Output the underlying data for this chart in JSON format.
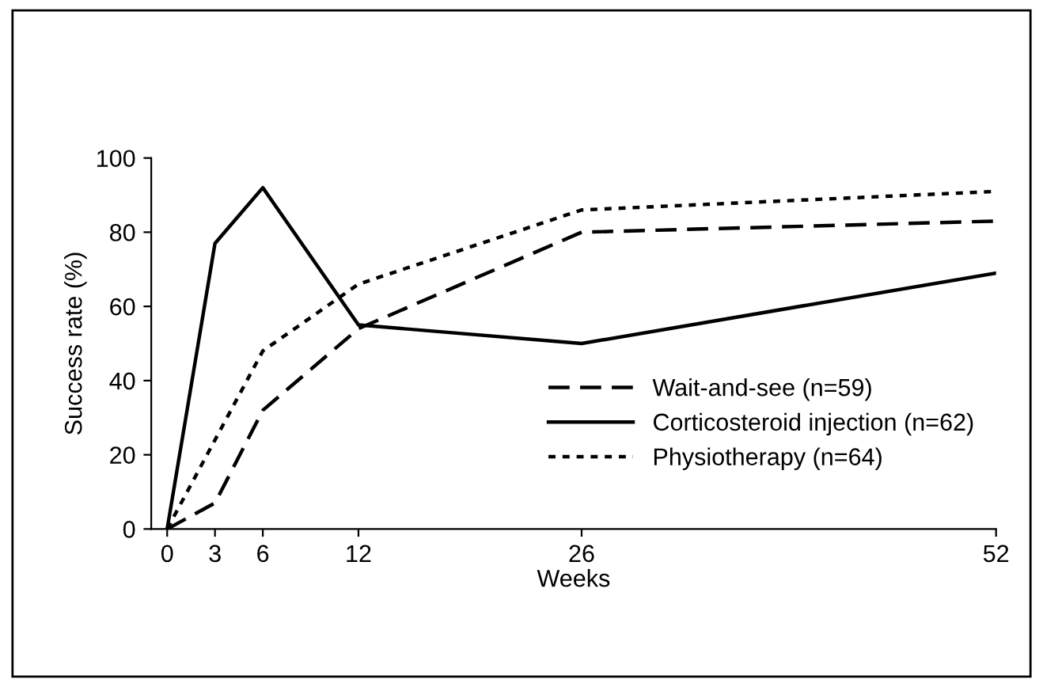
{
  "chart_data": {
    "type": "line",
    "xlabel": "Weeks",
    "ylabel": "Success rate (%)",
    "x": [
      0,
      3,
      6,
      12,
      26,
      52
    ],
    "series": [
      {
        "name": "Wait-and-see (n=59)",
        "color": "#000000",
        "line_style": "dashed",
        "values": [
          0,
          7,
          32,
          54,
          80,
          83
        ]
      },
      {
        "name": "Corticosteroid injection (n=62)",
        "color": "#000000",
        "line_style": "solid",
        "values": [
          0,
          77,
          92,
          55,
          50,
          69
        ]
      },
      {
        "name": "Physiotherapy (n=64)",
        "color": "#000000",
        "line_style": "dotted",
        "values": [
          0,
          24,
          48,
          66,
          86,
          91
        ]
      }
    ],
    "xlim": [
      -1,
      52
    ],
    "xticks": [
      0,
      3,
      6,
      12,
      26,
      52
    ],
    "ylim": [
      0,
      100
    ],
    "yticks": [
      0,
      20,
      40,
      60,
      80,
      100
    ],
    "grid": false,
    "legend": "lower right",
    "marker": "none"
  }
}
